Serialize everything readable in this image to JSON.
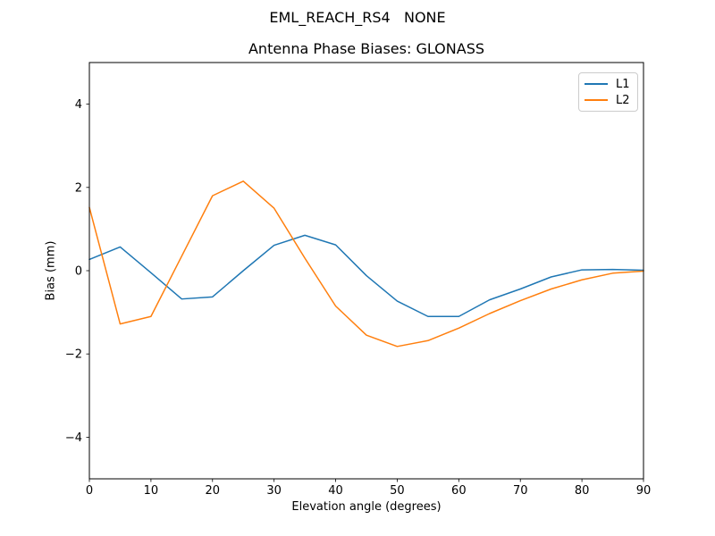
{
  "figure": {
    "suptitle": "EML_REACH_RS4   NONE",
    "background": "#ffffff",
    "text_color": "#000000",
    "spine_color": "#000000"
  },
  "chart_data": {
    "type": "line",
    "title": "Antenna Phase Biases: GLONASS",
    "xlabel": "Elevation angle (degrees)",
    "ylabel": "Bias (mm)",
    "xlim": [
      0,
      90
    ],
    "ylim": [
      -5,
      5
    ],
    "xticks": [
      0,
      10,
      20,
      30,
      40,
      50,
      60,
      70,
      80,
      90
    ],
    "yticks": [
      -4,
      -2,
      0,
      2,
      4
    ],
    "grid": false,
    "legend_position": "upper right",
    "x": [
      0,
      5,
      10,
      15,
      20,
      25,
      30,
      35,
      40,
      45,
      50,
      55,
      60,
      65,
      70,
      75,
      80,
      85,
      90
    ],
    "series": [
      {
        "name": "L1",
        "color": "#1f77b4",
        "values": [
          0.27,
          0.57,
          -0.05,
          -0.68,
          -0.63,
          0.0,
          0.61,
          0.85,
          0.62,
          -0.12,
          -0.73,
          -1.1,
          -1.1,
          -0.7,
          -0.44,
          -0.15,
          0.02,
          0.03,
          0.01
        ]
      },
      {
        "name": "L2",
        "color": "#ff7f0e",
        "values": [
          1.52,
          -1.28,
          -1.1,
          0.35,
          1.8,
          2.15,
          1.5,
          0.3,
          -0.85,
          -1.55,
          -1.82,
          -1.68,
          -1.38,
          -1.03,
          -0.72,
          -0.44,
          -0.22,
          -0.06,
          -0.01
        ]
      }
    ]
  }
}
